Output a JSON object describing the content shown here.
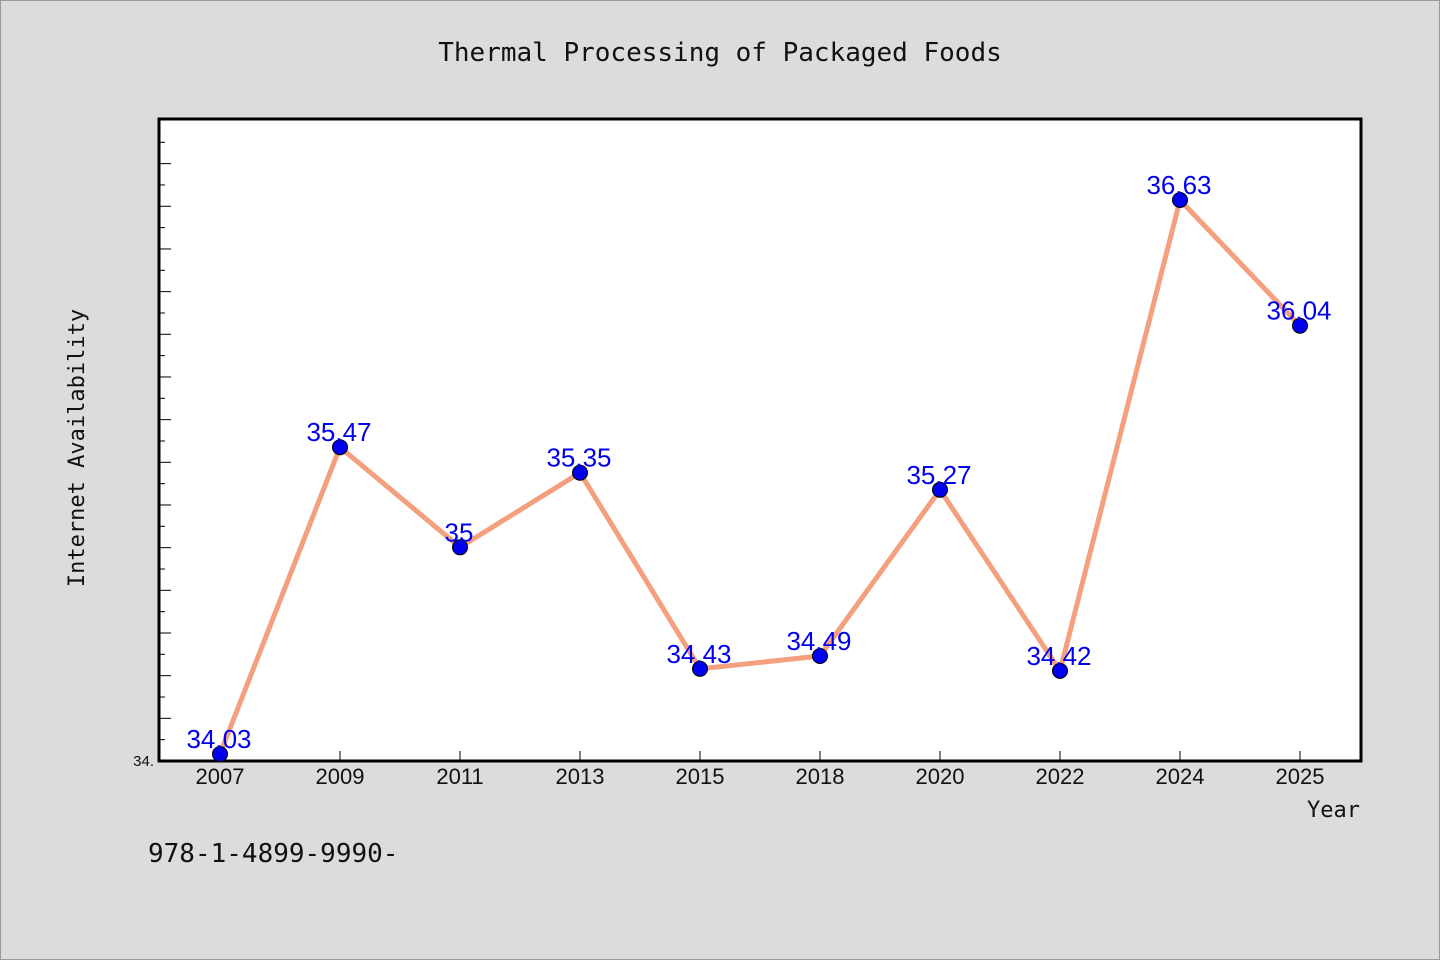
{
  "chart_data": {
    "type": "line",
    "title": "Thermal Processing of Packaged Foods",
    "xlabel": "Year",
    "ylabel": "Internet Availability",
    "categories": [
      "2007",
      "2009",
      "2011",
      "2013",
      "2015",
      "2018",
      "2020",
      "2022",
      "2024",
      "2025"
    ],
    "series": [
      {
        "values": [
          34.03,
          35.47,
          35.0,
          35.35,
          34.43,
          34.49,
          35.27,
          34.42,
          36.63,
          36.04
        ],
        "labels": [
          "34.03",
          "35.47",
          "35",
          "35.35",
          "34.43",
          "34.49",
          "35.27",
          "34.42",
          "36.63",
          "36.04"
        ]
      }
    ],
    "ylim": [
      34.0,
      37.0
    ],
    "ytick_labels": [
      "34."
    ],
    "grid": false,
    "line_color": "#f4a07e",
    "marker_color": "#0000ee",
    "label_color": "#0000ee"
  },
  "footer": {
    "isbn": "978-1-4899-9990-"
  }
}
